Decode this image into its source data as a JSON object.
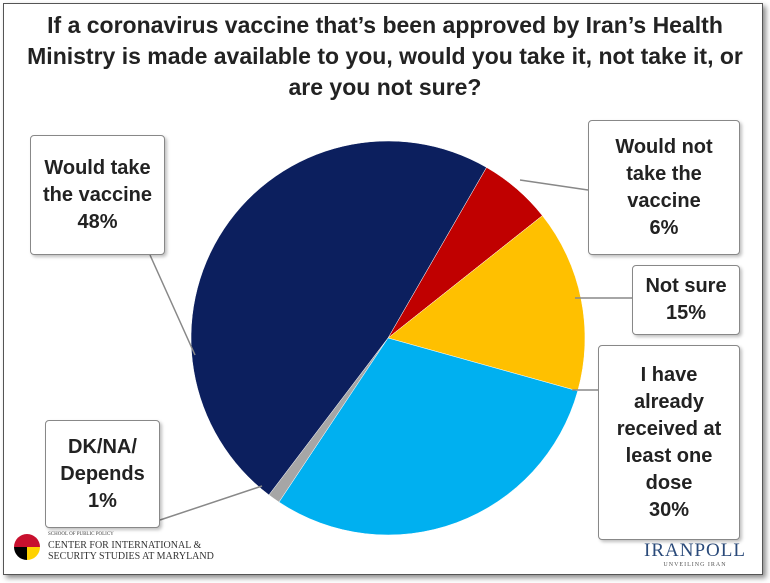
{
  "chart_data": {
    "type": "pie",
    "title": "If a coronavirus vaccine that’s been approved by Iran’s Health Ministry is made available to you, would you take it, not take it, or are you not sure?",
    "categories": [
      "Would not take the vaccine",
      "Not sure",
      "I have already received at least one dose",
      "DK/NA/ Depends",
      "Would take the vaccine"
    ],
    "values": [
      6,
      15,
      30,
      1,
      48
    ],
    "value_labels": [
      "6%",
      "15%",
      "30%",
      "1%",
      "48%"
    ],
    "colors": [
      "#c00000",
      "#ffc000",
      "#00b0f0",
      "#a6a6a6",
      "#0c1f5e"
    ]
  },
  "footer": {
    "school": "SCHOOL OF PUBLIC POLICY",
    "center": "CENTER FOR INTERNATIONAL & SECURITY STUDIES AT MARYLAND",
    "brand": "IRANPOLL",
    "tagline": "UNVEILING IRAN"
  }
}
